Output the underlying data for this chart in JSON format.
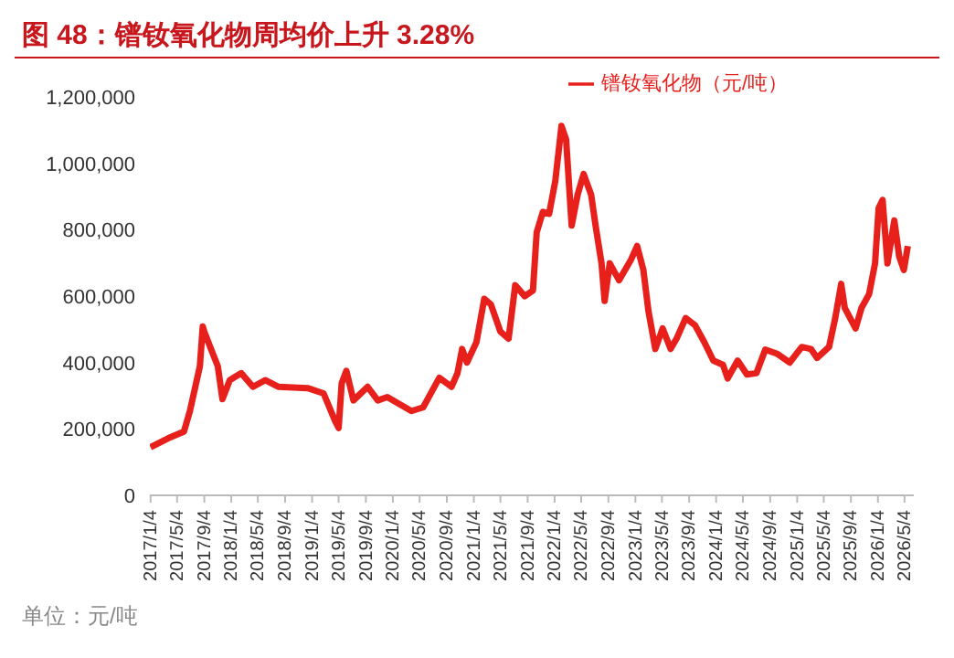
{
  "chart_data": {
    "type": "line",
    "title": "图 48：镨钕氧化物周均价上升 3.28%",
    "annotations": [
      "单位：元/吨"
    ],
    "x": [
      "2017-01-04",
      "2017-03-25",
      "2017-06-04",
      "2017-07-01",
      "2017-08-15",
      "2017-08-28",
      "2017-09-04",
      "2017-10-04",
      "2017-11-04",
      "2017-11-25",
      "2017-12-28",
      "2018-02-18",
      "2018-04-12",
      "2018-06-06",
      "2018-08-04",
      "2018-12-15",
      "2019-02-25",
      "2019-04-18",
      "2019-05-04",
      "2019-05-18",
      "2019-06-08",
      "2019-07-10",
      "2019-09-12",
      "2019-10-28",
      "2019-12-10",
      "2020-03-28",
      "2020-05-20",
      "2020-08-01",
      "2020-09-25",
      "2020-10-22",
      "2020-11-12",
      "2020-12-04",
      "2021-01-16",
      "2021-02-20",
      "2021-03-22",
      "2021-05-04",
      "2021-06-10",
      "2021-07-10",
      "2021-08-22",
      "2021-09-28",
      "2021-10-15",
      "2021-11-12",
      "2021-12-10",
      "2022-01-07",
      "2022-02-04",
      "2022-02-25",
      "2022-03-22",
      "2022-04-18",
      "2022-05-15",
      "2022-06-18",
      "2022-07-08",
      "2022-08-04",
      "2022-08-18",
      "2022-09-10",
      "2022-10-22",
      "2022-12-15",
      "2023-01-12",
      "2023-02-09",
      "2023-03-04",
      "2023-04-04",
      "2023-05-07",
      "2023-06-12",
      "2023-07-09",
      "2023-08-19",
      "2023-09-30",
      "2023-11-11",
      "2023-12-22",
      "2024-02-04",
      "2024-02-25",
      "2024-04-10",
      "2024-05-22",
      "2024-07-04",
      "2024-08-13",
      "2024-10-07",
      "2024-12-01",
      "2025-01-25",
      "2025-03-07",
      "2025-04-04",
      "2025-05-28",
      "2025-06-25",
      "2025-07-22",
      "2025-08-07",
      "2025-09-25",
      "2025-10-22",
      "2025-11-25",
      "2025-12-22",
      "2026-01-07",
      "2026-01-25",
      "2026-02-16",
      "2026-03-19",
      "2026-04-10",
      "2026-05-01",
      "2026-05-19"
    ],
    "series": [
      {
        "name": "镨钕氧化物（元/吨）",
        "color": "#e8201c",
        "values": [
          145000,
          172000,
          192000,
          254000,
          389000,
          509000,
          493000,
          441000,
          389000,
          290000,
          347000,
          368000,
          327000,
          347000,
          327000,
          323000,
          307000,
          224000,
          203000,
          338000,
          375000,
          286000,
          327000,
          286000,
          296000,
          254000,
          265000,
          354000,
          327000,
          368000,
          441000,
          400000,
          462000,
          592000,
          575000,
          493000,
          472000,
          633000,
          600000,
          617000,
          792000,
          854000,
          848000,
          947000,
          1113000,
          1072000,
          813000,
          906000,
          968000,
          906000,
          813000,
          699000,
          586000,
          699000,
          648000,
          710000,
          751000,
          679000,
          555000,
          441000,
          503000,
          441000,
          472000,
          534000,
          513000,
          462000,
          406000,
          393000,
          352000,
          406000,
          364000,
          368000,
          439000,
          426000,
          400000,
          447000,
          441000,
          414000,
          447000,
          534000,
          637000,
          565000,
          503000,
          565000,
          606000,
          699000,
          865000,
          890000,
          699000,
          828000,
          720000,
          679000,
          751000
        ]
      }
    ],
    "xlim": [
      "2017-01-01",
      "2026-06-15"
    ],
    "xticks": [
      {
        "value": "2017-01-04",
        "label": "2017/1/4"
      },
      {
        "value": "2017-05-04",
        "label": "2017/5/4"
      },
      {
        "value": "2017-09-04",
        "label": "2017/9/4"
      },
      {
        "value": "2018-01-04",
        "label": "2018/1/4"
      },
      {
        "value": "2018-05-04",
        "label": "2018/5/4"
      },
      {
        "value": "2018-09-04",
        "label": "2018/9/4"
      },
      {
        "value": "2019-01-04",
        "label": "2019/1/4"
      },
      {
        "value": "2019-05-04",
        "label": "2019/5/4"
      },
      {
        "value": "2019-09-04",
        "label": "2019/9/4"
      },
      {
        "value": "2020-01-04",
        "label": "2020/1/4"
      },
      {
        "value": "2020-05-04",
        "label": "2020/5/4"
      },
      {
        "value": "2020-09-04",
        "label": "2020/9/4"
      },
      {
        "value": "2021-01-04",
        "label": "2021/1/4"
      },
      {
        "value": "2021-05-04",
        "label": "2021/5/4"
      },
      {
        "value": "2021-09-04",
        "label": "2021/9/4"
      },
      {
        "value": "2022-01-04",
        "label": "2022/1/4"
      },
      {
        "value": "2022-05-04",
        "label": "2022/5/4"
      },
      {
        "value": "2022-09-04",
        "label": "2022/9/4"
      },
      {
        "value": "2023-01-04",
        "label": "2023/1/4"
      },
      {
        "value": "2023-05-04",
        "label": "2023/5/4"
      },
      {
        "value": "2023-09-04",
        "label": "2023/9/4"
      },
      {
        "value": "2024-01-04",
        "label": "2024/1/4"
      },
      {
        "value": "2024-05-04",
        "label": "2024/5/4"
      },
      {
        "value": "2024-09-04",
        "label": "2024/9/4"
      },
      {
        "value": "2025-01-04",
        "label": "2025/1/4"
      },
      {
        "value": "2025-05-04",
        "label": "2025/5/4"
      },
      {
        "value": "2025-09-04",
        "label": "2025/9/4"
      },
      {
        "value": "2026-01-04",
        "label": "2026/1/4"
      },
      {
        "value": "2026-05-04",
        "label": "2026/5/4"
      }
    ],
    "ylim": [
      0,
      1200000
    ],
    "yticks": [
      0,
      {
        "value": 200000,
        "label": "200,000"
      },
      {
        "value": 400000,
        "label": "400,000"
      },
      {
        "value": 600000,
        "label": "600,000"
      },
      {
        "value": 800000,
        "label": "800,000"
      },
      {
        "value": 1000000,
        "label": "1,000,000"
      },
      {
        "value": 1200000,
        "label": "1,200,000"
      }
    ],
    "grid": false,
    "legend": "top",
    "marker": "none",
    "line_style": "solid"
  }
}
